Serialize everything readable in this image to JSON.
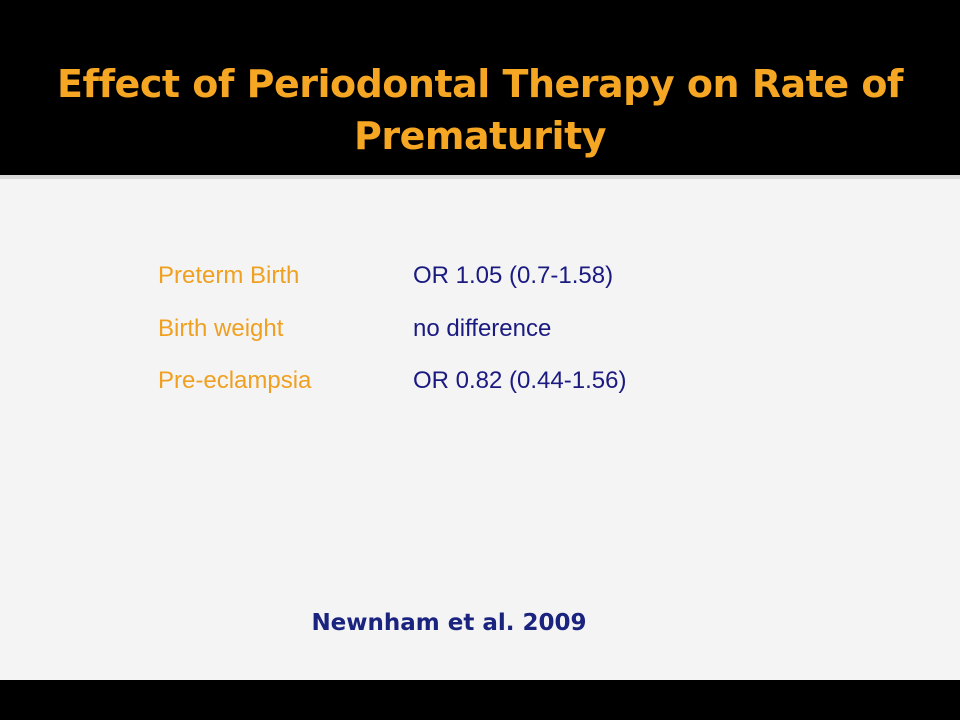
{
  "slide": {
    "title": "Effect of Periodontal Therapy on Rate of Prematurity",
    "rows": [
      {
        "label": "Preterm Birth",
        "value": "OR 1.05 (0.7-1.58)"
      },
      {
        "label": "Birth weight",
        "value": "no difference"
      },
      {
        "label": "Pre-eclampsia",
        "value": "OR 0.82 (0.44-1.56)"
      }
    ],
    "citation": "Newnham et al. 2009"
  },
  "colors": {
    "title": "#F5A623",
    "label": "#F0A020",
    "value": "#1A1A80",
    "citation": "#1A237E",
    "background": "#F4F4F5",
    "frame": "#000000"
  }
}
